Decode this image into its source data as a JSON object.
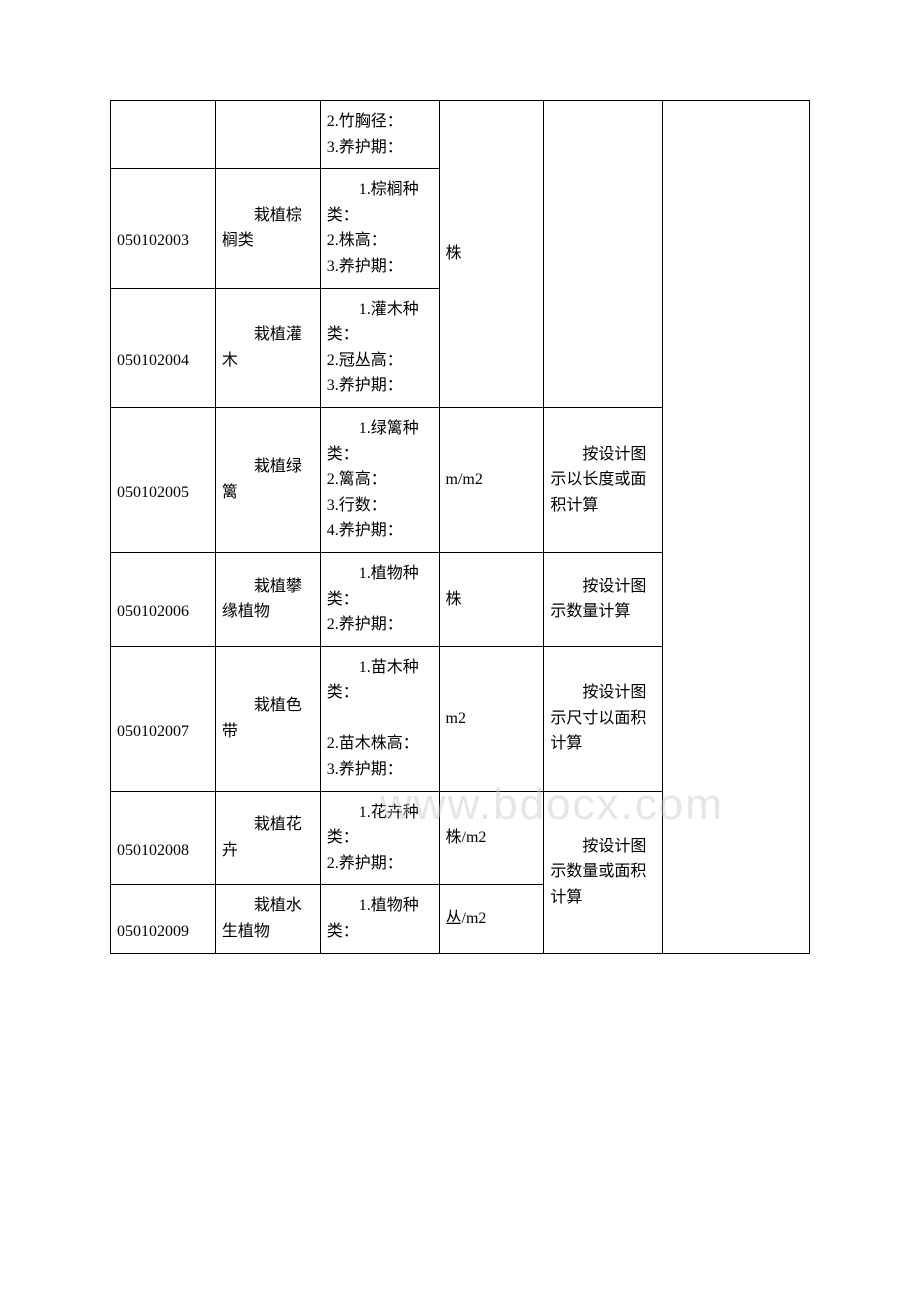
{
  "watermark": "www.bdocx.com",
  "table": {
    "columns": {
      "widths": [
        "15%",
        "15%",
        "17%",
        "15%",
        "17%",
        "21%"
      ],
      "border_color": "#000000",
      "font_size": 16,
      "text_color": "#000000",
      "background": "#ffffff"
    },
    "rows": [
      {
        "code": "",
        "name": "",
        "desc": "2.竹胸径：\n3.养护期：",
        "unit": "",
        "rule": "",
        "last": ""
      },
      {
        "code": "　　050102003",
        "name": "　　栽植棕榈类",
        "desc": "　　1.棕榈种类：\n2.株高：\n3.养护期：",
        "unit_merge": "株",
        "rule": "",
        "last": ""
      },
      {
        "code": "　　050102004",
        "name": "　　栽植灌木",
        "desc": "　　1.灌木种类：\n2.冠丛高：\n3.养护期：",
        "unit": "",
        "rule": "",
        "last": ""
      },
      {
        "code": "　　050102005",
        "name": "　　栽植绿篱",
        "desc": "　　1.绿篱种类：\n2.篱高：\n3.行数：\n4.养护期：",
        "unit": "m/m2",
        "rule": "　　按设计图示以长度或面积计算",
        "last": ""
      },
      {
        "code": "　　050102006",
        "name": "　　栽植攀缘植物",
        "desc": "　　1.植物种类：\n2.养护期：",
        "unit": "株",
        "rule": "　　按设计图示数量计算",
        "last": ""
      },
      {
        "code": "　　050102007",
        "name": "　　栽植色带",
        "desc": "　　1.苗木种类：\n\n2.苗木株高：\n3.养护期：",
        "unit": "m2",
        "rule": "　　按设计图示尺寸以面积计算",
        "last": ""
      },
      {
        "code": "　　050102008",
        "name": "　　栽植花卉",
        "desc": "　　1.花卉种类：\n2.养护期：",
        "unit": "株/m2",
        "rule_merge": "　　按设计图示数量或面积计算",
        "last": ""
      },
      {
        "code": "　　050102009",
        "name": "　　栽植水生植物",
        "desc": "　　1.植物种类：",
        "unit": "丛/m2",
        "rule": "",
        "last": ""
      }
    ]
  }
}
